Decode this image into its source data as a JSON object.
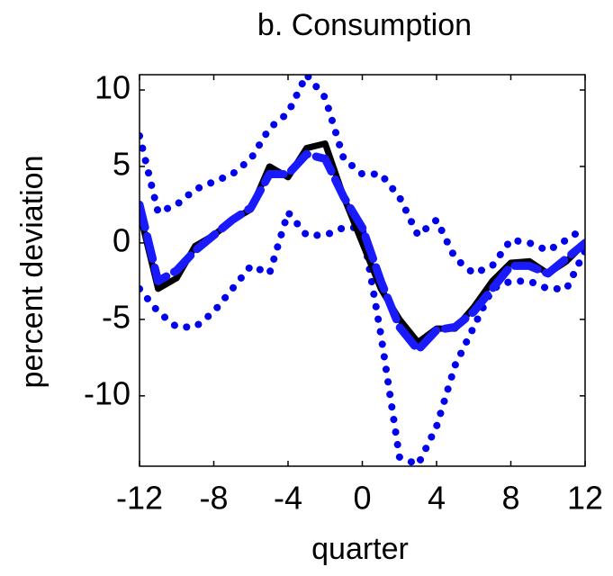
{
  "chart_data": {
    "type": "line",
    "title": "b. Consumption",
    "x_label": "quarter",
    "y_label": "percent deviation",
    "x": [
      -12,
      -11,
      -10,
      -9,
      -8,
      -7,
      -6,
      -5,
      -4,
      -3,
      -2,
      -1,
      0,
      1,
      2,
      3,
      4,
      5,
      6,
      7,
      8,
      9,
      10,
      11,
      12
    ],
    "series": [
      {
        "color": "#0000ee",
        "dash": "dotted",
        "values": [
          7,
          2,
          2.5,
          3.5,
          4,
          4.5,
          5.5,
          7.5,
          8.5,
          11,
          9.5,
          5.5,
          4.5,
          4.5,
          3,
          0.5,
          1.5,
          -1,
          -2,
          -1.5,
          0.2,
          0,
          -0.5,
          0.2,
          1
        ]
      },
      {
        "color": "#0000ee",
        "dash": "dotted",
        "values": [
          -3,
          -4.5,
          -5.5,
          -5.5,
          -4.5,
          -3,
          -1.5,
          -2,
          2,
          0.5,
          0.5,
          1,
          1,
          -6,
          -14,
          -14.5,
          -12,
          -8,
          -5.5,
          -3,
          -2.5,
          -2.5,
          -3,
          -3,
          -0.5
        ]
      },
      {
        "color": "#000000",
        "dash": "solid",
        "values": [
          2,
          -3,
          -2.3,
          -0.2,
          0.5,
          1.5,
          2.2,
          5,
          4.3,
          6.2,
          6.5,
          3,
          0,
          -3,
          -5,
          -6.5,
          -5.6,
          -5.6,
          -4.2,
          -2.5,
          -1.3,
          -1.2,
          -2,
          -1.2,
          0
        ]
      },
      {
        "color": "#1a1aff",
        "dash": "dashed",
        "values": [
          2.5,
          -2.5,
          -1.8,
          -0.5,
          0.5,
          1.5,
          2.3,
          4.5,
          4.5,
          5.8,
          5.5,
          3,
          1,
          -2.5,
          -5.5,
          -7,
          -5.7,
          -5.5,
          -4.5,
          -3,
          -1.5,
          -1.5,
          -2,
          -1,
          0
        ]
      }
    ],
    "xlim": [
      -12,
      12
    ],
    "ylim": [
      -14.6,
      11
    ],
    "xticks": [
      -12,
      -8,
      -4,
      0,
      4,
      8,
      12
    ],
    "yticks": [
      -10,
      -5,
      0,
      5,
      10
    ]
  }
}
